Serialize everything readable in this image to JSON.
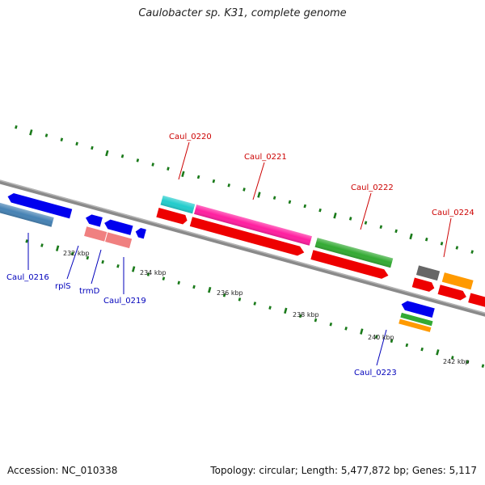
{
  "title": "Caulobacter sp. K31, complete genome",
  "footer": {
    "accession": "Accession: NC_010338",
    "summary": "Topology: circular; Length: 5,477,872 bp; Genes: 5,117"
  },
  "colors": {
    "label_forward": "#cc0000",
    "label_reverse": "#0000bb",
    "tick": "#1a7a1a",
    "backbone": "#888888"
  },
  "ruler": [
    "232 kbp",
    "234 kbp",
    "236 kbp",
    "238 kbp",
    "240 kbp",
    "242 kbp"
  ],
  "gene_labels": {
    "caul_0216": "Caul_0216",
    "rpls": "rplS",
    "trmd": "trmD",
    "caul_0219": "Caul_0219",
    "caul_0220": "Caul_0220",
    "caul_0221": "Caul_0221",
    "caul_0222": "Caul_0222",
    "caul_0223": "Caul_0223",
    "caul_0224": "Caul_0224"
  }
}
